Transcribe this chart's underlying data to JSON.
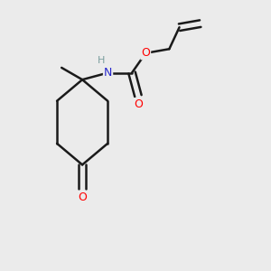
{
  "bg_color": "#ebebeb",
  "atom_colors": {
    "N": "#2525cc",
    "O": "#ff0000",
    "H": "#7a9e9e",
    "C": "#1a1a1a"
  },
  "bond_color": "#1a1a1a",
  "bond_width": 1.8,
  "fig_size": [
    3.0,
    3.0
  ],
  "dpi": 100
}
